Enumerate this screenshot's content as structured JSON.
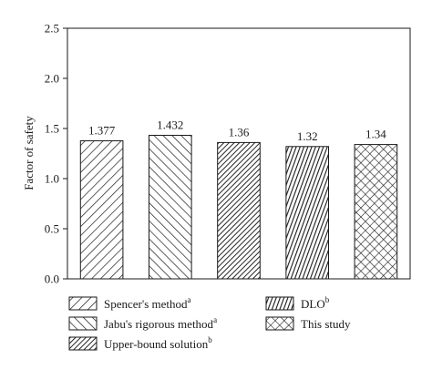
{
  "chart_data": {
    "type": "bar",
    "title": "",
    "xlabel": "",
    "ylabel": "Factor of safety",
    "ylim": [
      0,
      2.5
    ],
    "yticks": [
      "0.0",
      "0.5",
      "1.0",
      "1.5",
      "2.0",
      "2.5"
    ],
    "grid": false,
    "legend_position": "bottom",
    "categories": [
      {
        "name": "Spencer's method",
        "sup": "a",
        "pattern": "diag-right"
      },
      {
        "name": "Jabu's rigorous method",
        "sup": "a",
        "pattern": "diag-left"
      },
      {
        "name": "Upper-bound solution",
        "sup": "b",
        "pattern": "dense-diag"
      },
      {
        "name": "DLO",
        "sup": "b",
        "pattern": "dense-vertical"
      },
      {
        "name": "This study",
        "sup": "",
        "pattern": "crosshatch"
      }
    ],
    "values": [
      1.377,
      1.432,
      1.36,
      1.32,
      1.34
    ],
    "value_labels": [
      "1.377",
      "1.432",
      "1.36",
      "1.32",
      "1.34"
    ],
    "colors": {
      "stroke": "#1a1a1a",
      "fill": "#ffffff"
    }
  }
}
